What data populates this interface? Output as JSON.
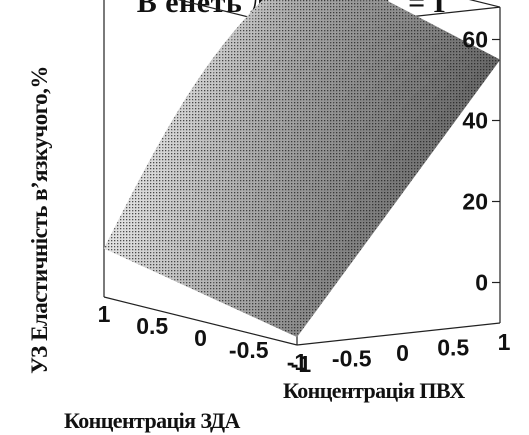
{
  "chart_data": {
    "type": "surface3d",
    "title": "В енеть двогто, АГ = Г",
    "zlabel": "УЗ Еластичність в’язкучого,%",
    "xlabel": "Концентрація ПВХ",
    "ylabel": "Концентрація ЗДА",
    "x_ticks": [
      "-1",
      "-0.5",
      "0",
      "0.5",
      "1"
    ],
    "y_ticks": [
      "1",
      "0.5",
      "0",
      "-0.5",
      "-1"
    ],
    "z_ticks": [
      "0",
      "20",
      "40",
      "60"
    ],
    "x_range": [
      -1,
      1
    ],
    "y_range": [
      -1,
      1
    ],
    "z_range": [
      -10,
      68
    ],
    "corner_values": [
      {
        "pvh": -1,
        "zda": -1,
        "value": -8
      },
      {
        "pvh": -1,
        "zda": 1,
        "value": 2
      },
      {
        "pvh": 1,
        "zda": -1,
        "value": 55
      },
      {
        "pvh": 1,
        "zda": 1,
        "value": 68
      }
    ],
    "surface_color": "#8a8a8a",
    "box": "on"
  }
}
